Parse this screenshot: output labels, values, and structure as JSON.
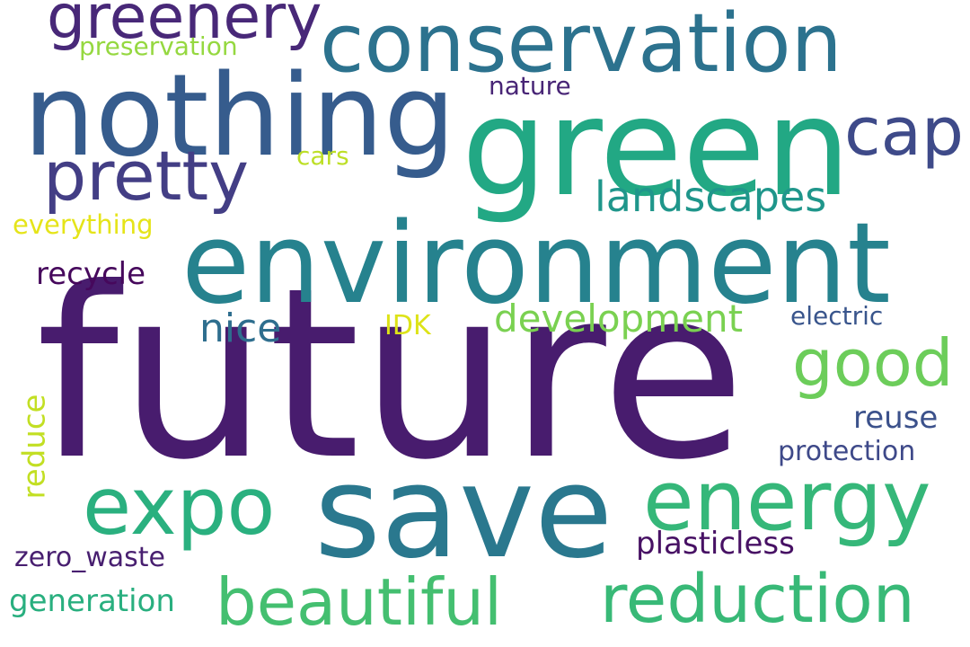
{
  "word_cloud": {
    "words": [
      {
        "text": "future",
        "color": "#481c6e"
      },
      {
        "text": "save",
        "color": "#2a788e"
      },
      {
        "text": "green",
        "color": "#22a884"
      },
      {
        "text": "environment",
        "color": "#26828e"
      },
      {
        "text": "nothing",
        "color": "#365c8d"
      },
      {
        "text": "conservation",
        "color": "#2c728e"
      },
      {
        "text": "energy",
        "color": "#35b779"
      },
      {
        "text": "expo",
        "color": "#2ab07f"
      },
      {
        "text": "greenery",
        "color": "#482878"
      },
      {
        "text": "pretty",
        "color": "#433e85"
      },
      {
        "text": "cap",
        "color": "#3e4a89"
      },
      {
        "text": "beautiful",
        "color": "#44bf70"
      },
      {
        "text": "reduction",
        "color": "#38b977"
      },
      {
        "text": "good",
        "color": "#6ccd5a"
      },
      {
        "text": "landscapes",
        "color": "#1f968b"
      },
      {
        "text": "development",
        "color": "#7ad151"
      },
      {
        "text": "nice",
        "color": "#2e6e8e"
      },
      {
        "text": "recycle",
        "color": "#46085c"
      },
      {
        "text": "reuse",
        "color": "#3b518b"
      },
      {
        "text": "protection",
        "color": "#3e4989"
      },
      {
        "text": "plasticless",
        "color": "#471164"
      },
      {
        "text": "generation",
        "color": "#29af7f"
      },
      {
        "text": "zero_waste",
        "color": "#481f70"
      },
      {
        "text": "electric",
        "color": "#39558c"
      },
      {
        "text": "nature",
        "color": "#482576"
      },
      {
        "text": "preservation",
        "color": "#95d840"
      },
      {
        "text": "cars",
        "color": "#bddf26"
      },
      {
        "text": "everything",
        "color": "#e5e419"
      },
      {
        "text": "IDK",
        "color": "#dde318"
      },
      {
        "text": "reduce",
        "color": "#c2df23"
      }
    ]
  }
}
